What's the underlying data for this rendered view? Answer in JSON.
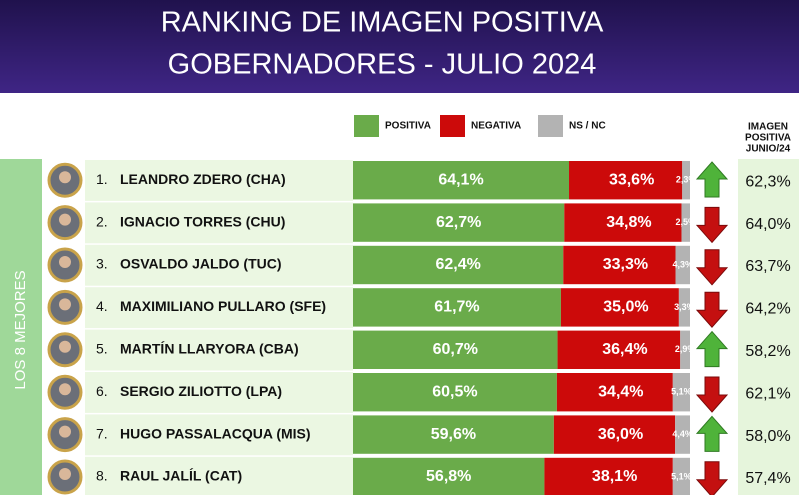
{
  "chart_data": {
    "type": "bar",
    "orientation": "horizontal",
    "stacked": true,
    "title": "RANKING DE IMAGEN POSITIVA",
    "subtitle": "GOBERNADORES - JULIO 2024",
    "group_label": "LOS 8 MEJORES",
    "ranks": [
      "1.",
      "2.",
      "3.",
      "4.",
      "5.",
      "6.",
      "7.",
      "8."
    ],
    "categories": [
      "LEANDRO ZDERO (CHA)",
      "IGNACIO TORRES (CHU)",
      "OSVALDO JALDO (TUC)",
      "MAXIMILIANO PULLARO (SFE)",
      "MARTÍN LLARYORA (CBA)",
      "SERGIO ZILIOTTO (LPA)",
      "HUGO PASSALACQUA (MIS)",
      "RAUL JALÍL (CAT)"
    ],
    "series": [
      {
        "name": "POSITIVA",
        "color": "#6aab4a",
        "values": [
          64.1,
          62.7,
          62.4,
          61.7,
          60.7,
          60.5,
          59.6,
          56.8
        ],
        "value_labels": [
          "64,1%",
          "62,7%",
          "62,4%",
          "61,7%",
          "60,7%",
          "60,5%",
          "59,6%",
          "56,8%"
        ]
      },
      {
        "name": "NEGATIVA",
        "color": "#cc0a0a",
        "values": [
          33.6,
          34.8,
          33.3,
          35.0,
          36.4,
          34.4,
          36.0,
          38.1
        ],
        "value_labels": [
          "33,6%",
          "34,8%",
          "33,3%",
          "35,0%",
          "36,4%",
          "34,4%",
          "36,0%",
          "38,1%"
        ]
      },
      {
        "name": "NS / NC",
        "color": "#b3b3b3",
        "values": [
          2.3,
          2.5,
          4.3,
          3.3,
          2.9,
          5.1,
          4.4,
          5.1
        ],
        "value_labels": [
          "2,3%",
          "2,5%",
          "4,3%",
          "3,3%",
          "2,9%",
          "5,1%",
          "4,4%",
          "5,1%"
        ]
      }
    ],
    "previous": {
      "title": [
        "IMAGEN",
        "POSITIVA",
        "JUNIO/24"
      ],
      "values": [
        62.3,
        64.0,
        63.7,
        64.2,
        58.2,
        62.1,
        58.0,
        57.4
      ],
      "value_labels": [
        "62,3%",
        "64,0%",
        "63,7%",
        "64,2%",
        "58,2%",
        "62,1%",
        "58,0%",
        "57,4%"
      ]
    }
  }
}
